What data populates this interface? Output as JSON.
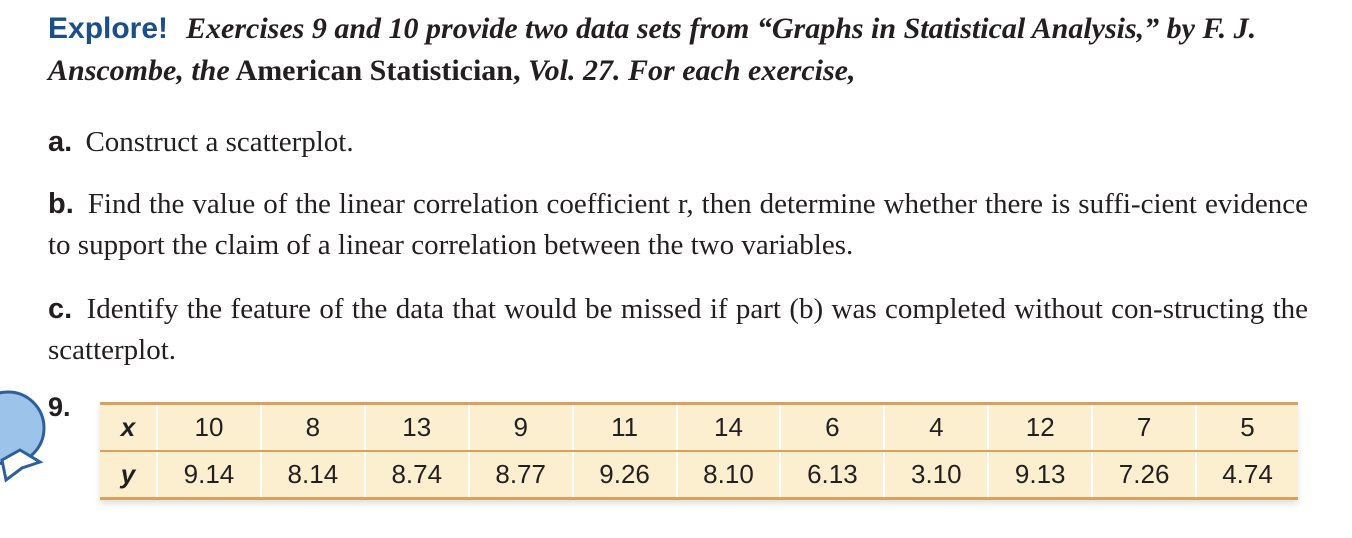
{
  "intro": {
    "label": "Explore!",
    "text_1": "Exercises 9 and 10 provide two data sets from “Graphs in Statistical Analysis,” by F. J. Anscombe, the",
    "journal": "American Statistician,",
    "text_2": "Vol. 27. For each exercise,"
  },
  "items": [
    {
      "label": "a.",
      "text": "Construct a scatterplot."
    },
    {
      "label": "b.",
      "text": "Find the value of the linear correlation coefficient r, then determine whether there is suffi-cient evidence to support the claim of a linear correlation between the two variables."
    },
    {
      "label": "c.",
      "text": "Identify the feature of the data that would be missed if part (b) was completed without con-structing the scatterplot."
    }
  ],
  "exercise": {
    "number": "9.",
    "table": {
      "rows": [
        [
          "x",
          "10",
          "8",
          "13",
          "9",
          "11",
          "14",
          "6",
          "4",
          "12",
          "7",
          "5"
        ],
        [
          "y",
          "9.14",
          "8.14",
          "8.74",
          "8.77",
          "9.26",
          "8.10",
          "6.13",
          "3.10",
          "9.13",
          "7.26",
          "4.74"
        ]
      ]
    }
  }
}
